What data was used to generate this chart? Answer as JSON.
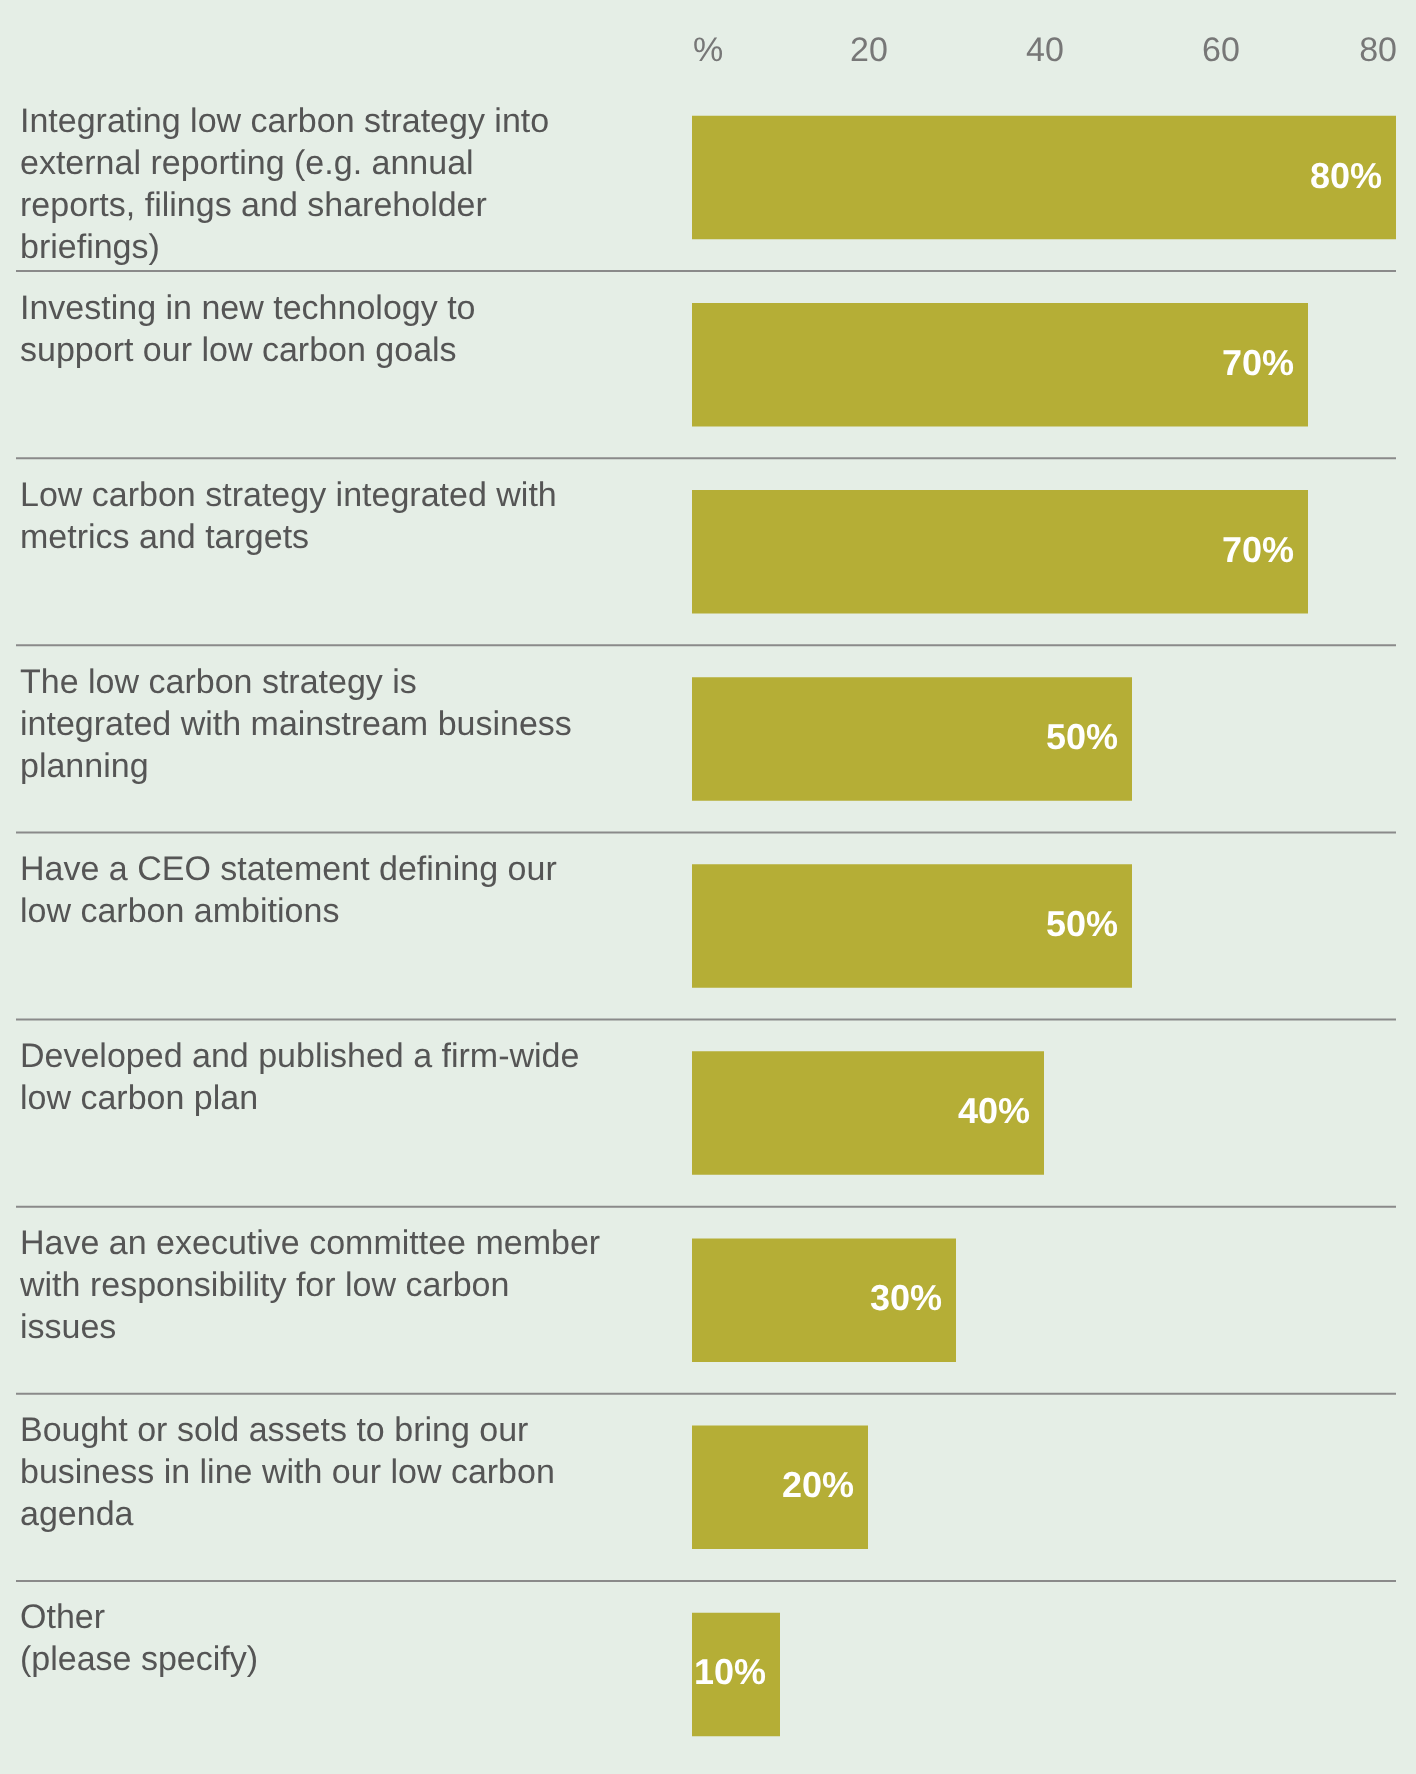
{
  "chart_data": {
    "type": "bar",
    "orientation": "horizontal",
    "categories": [
      "Integrating low carbon strategy into external reporting (e.g. annual reports, filings and shareholder briefings)",
      "Investing in new technology to support our low carbon goals",
      "Low carbon strategy integrated with metrics and targets",
      "The low carbon strategy is integrated with mainstream business planning",
      "Have a CEO statement defining our low carbon ambitions",
      "Developed and published a firm-wide low carbon plan",
      "Have an executive committee member with responsibility for low carbon issues",
      "Bought or sold assets to bring our business in line with our low carbon agenda",
      "Other (please specify)"
    ],
    "values": [
      80,
      70,
      70,
      50,
      50,
      40,
      30,
      20,
      10
    ],
    "value_labels": [
      "80%",
      "70%",
      "70%",
      "50%",
      "50%",
      "40%",
      "30%",
      "20%",
      "10%"
    ],
    "color": "#b5ae36",
    "xlim": [
      0,
      80
    ],
    "xticks": [
      {
        "value": 0,
        "label": "%"
      },
      20,
      40,
      60,
      80
    ],
    "grid": false
  }
}
